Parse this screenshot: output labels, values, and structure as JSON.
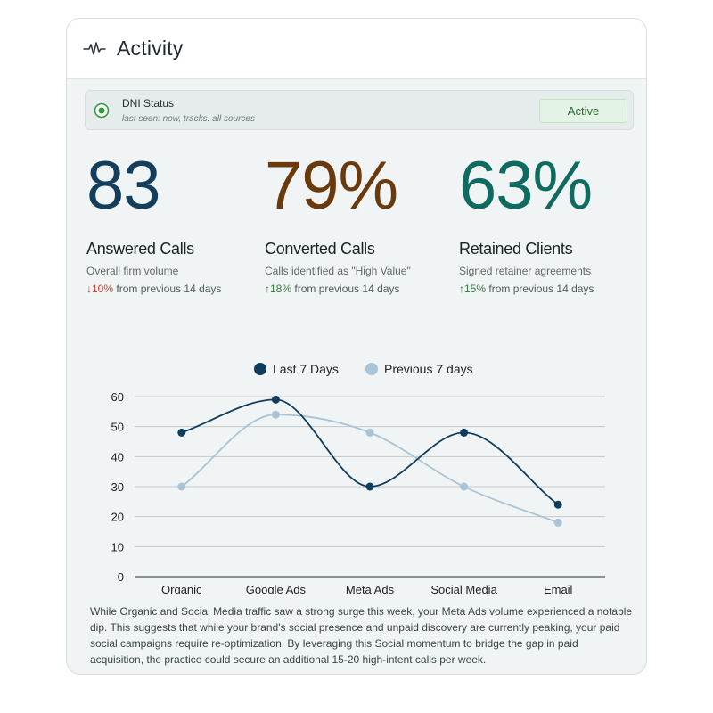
{
  "header": {
    "title": "Activity",
    "icon": "activity-pulse-icon"
  },
  "dni": {
    "title": "DNI Status",
    "subtitle": "last seen: now, tracks: all sources",
    "badge": "Active",
    "dot_color": "#2e9a3d",
    "icon": "radio-dot-icon"
  },
  "stats": [
    {
      "value": "83",
      "label": "Answered Calls",
      "description": "Overall firm volume",
      "change_arrow": "↓",
      "change_pct": "10%",
      "change_text": " from previous 14 days",
      "direction": "down",
      "color": "#143f5c"
    },
    {
      "value": "79%",
      "label": "Converted Calls",
      "description": "Calls identified as \"High Value\"",
      "change_arrow": "↑",
      "change_pct": "18%",
      "change_text": " from previous 14 days",
      "direction": "up",
      "color": "#6b3a0c"
    },
    {
      "value": "63%",
      "label": "Retained Clients",
      "description": "Signed retainer agreements",
      "change_arrow": "↑",
      "change_pct": "15%",
      "change_text": " from previous 14 days",
      "direction": "up",
      "color": "#0f6a60"
    }
  ],
  "chart_data": {
    "type": "line",
    "categories": [
      "Organic",
      "Google Ads",
      "Meta Ads",
      "Social Media",
      "Email"
    ],
    "series": [
      {
        "name": "Last 7 Days",
        "values": [
          48,
          59,
          30,
          48,
          24
        ],
        "color": "#0f3d5e"
      },
      {
        "name": "Previous 7 days",
        "values": [
          30,
          54,
          48,
          30,
          18
        ],
        "color": "#a8c4d6"
      }
    ],
    "yticks": [
      0,
      10,
      20,
      30,
      40,
      50,
      60
    ],
    "ylim": [
      0,
      60
    ],
    "curve": "smooth",
    "grid": true,
    "legend_position": "top-center"
  },
  "insight": "While Organic and Social Media traffic saw a strong surge this week, your Meta Ads volume experienced a notable dip. This suggests that while your brand's social presence and unpaid discovery are currently peaking, your paid social campaigns require re-optimization. By leveraging this Social momentum to bridge the gap in paid acquisition, the practice could secure an additional 15-20 high-intent calls per week."
}
